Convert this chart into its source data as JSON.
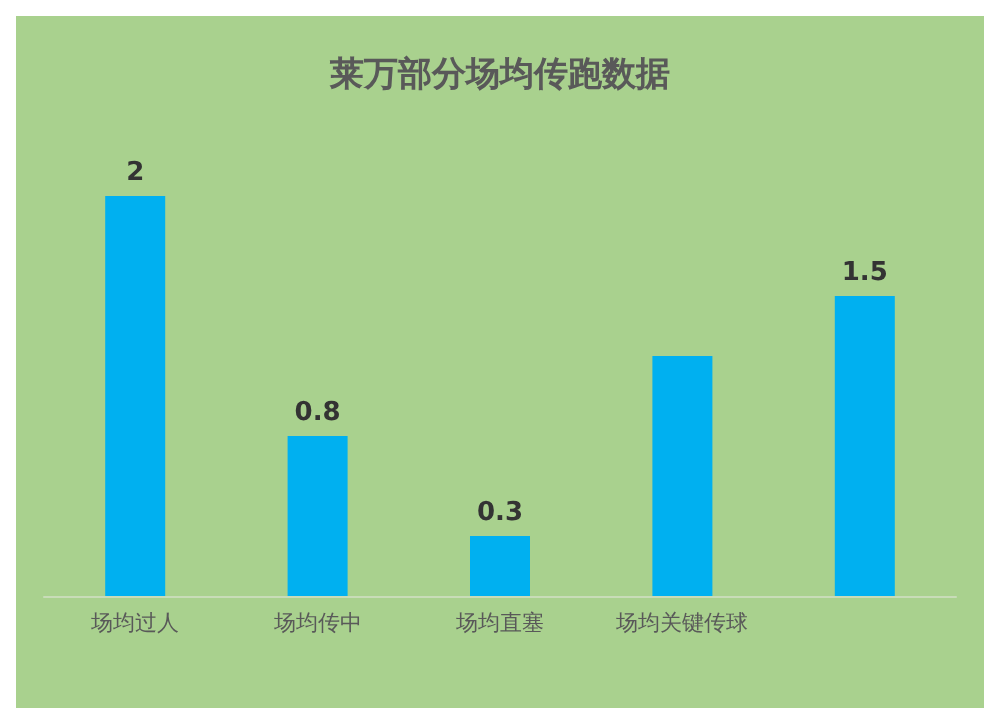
{
  "chart_data": {
    "type": "bar",
    "title": "莱万部分场均传跑数据",
    "categories": [
      "场均过人",
      "场均传中",
      "场均直塞",
      "场均关键传球",
      null
    ],
    "values": [
      2,
      0.8,
      0.3,
      1.2,
      1.5
    ],
    "value_labels": [
      "2",
      "0.8",
      "0.3",
      null,
      "1.5"
    ],
    "color": "#00b0f0"
  }
}
